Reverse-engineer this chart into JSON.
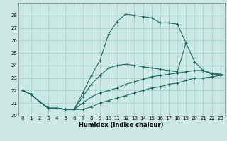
{
  "xlabel": "Humidex (Indice chaleur)",
  "bg_color": "#cce8e5",
  "grid_color": "#aacfcc",
  "line_color": "#1a6b60",
  "xlim": [
    -0.5,
    23.5
  ],
  "ylim": [
    20,
    29
  ],
  "yticks": [
    20,
    21,
    22,
    23,
    24,
    25,
    26,
    27,
    28
  ],
  "xticks": [
    0,
    1,
    2,
    3,
    4,
    5,
    6,
    7,
    8,
    9,
    10,
    11,
    12,
    13,
    14,
    15,
    16,
    17,
    18,
    19,
    20,
    21,
    22,
    23
  ],
  "curves": [
    {
      "x": [
        0,
        1,
        2,
        3,
        4,
        5,
        6,
        7,
        8,
        9,
        10,
        11,
        12,
        13,
        14,
        15,
        16,
        17,
        18,
        19,
        20,
        21,
        22,
        23
      ],
      "y": [
        22.0,
        21.7,
        21.1,
        20.6,
        20.6,
        20.5,
        20.5,
        21.8,
        23.2,
        24.4,
        26.5,
        27.5,
        28.1,
        28.0,
        27.9,
        27.8,
        27.4,
        27.4,
        27.3,
        25.8,
        null,
        null,
        null,
        null
      ]
    },
    {
      "x": [
        0,
        1,
        2,
        3,
        4,
        5,
        6,
        7,
        8,
        9,
        10,
        11,
        12,
        13,
        14,
        15,
        16,
        17,
        18,
        19,
        20,
        21,
        22,
        23
      ],
      "y": [
        22.0,
        21.7,
        21.1,
        20.6,
        20.6,
        20.5,
        20.5,
        21.5,
        22.5,
        23.2,
        23.8,
        24.0,
        24.1,
        24.0,
        23.9,
        23.8,
        23.7,
        23.6,
        23.5,
        25.8,
        24.3,
        23.6,
        23.3,
        23.3
      ]
    },
    {
      "x": [
        0,
        1,
        2,
        3,
        4,
        5,
        6,
        7,
        8,
        9,
        10,
        11,
        12,
        13,
        14,
        15,
        16,
        17,
        18,
        19,
        20,
        21,
        22,
        23
      ],
      "y": [
        22.0,
        21.7,
        21.1,
        20.6,
        20.6,
        20.5,
        20.5,
        21.0,
        21.5,
        21.8,
        22.0,
        22.2,
        22.5,
        22.7,
        22.9,
        23.1,
        23.2,
        23.3,
        23.4,
        23.5,
        23.6,
        23.6,
        23.4,
        23.3
      ]
    },
    {
      "x": [
        0,
        1,
        2,
        3,
        4,
        5,
        6,
        7,
        8,
        9,
        10,
        11,
        12,
        13,
        14,
        15,
        16,
        17,
        18,
        19,
        20,
        21,
        22,
        23
      ],
      "y": [
        22.0,
        21.7,
        21.1,
        20.6,
        20.6,
        20.5,
        20.5,
        20.5,
        20.7,
        21.0,
        21.2,
        21.4,
        21.6,
        21.8,
        22.0,
        22.2,
        22.3,
        22.5,
        22.6,
        22.8,
        23.0,
        23.0,
        23.1,
        23.2
      ]
    }
  ]
}
